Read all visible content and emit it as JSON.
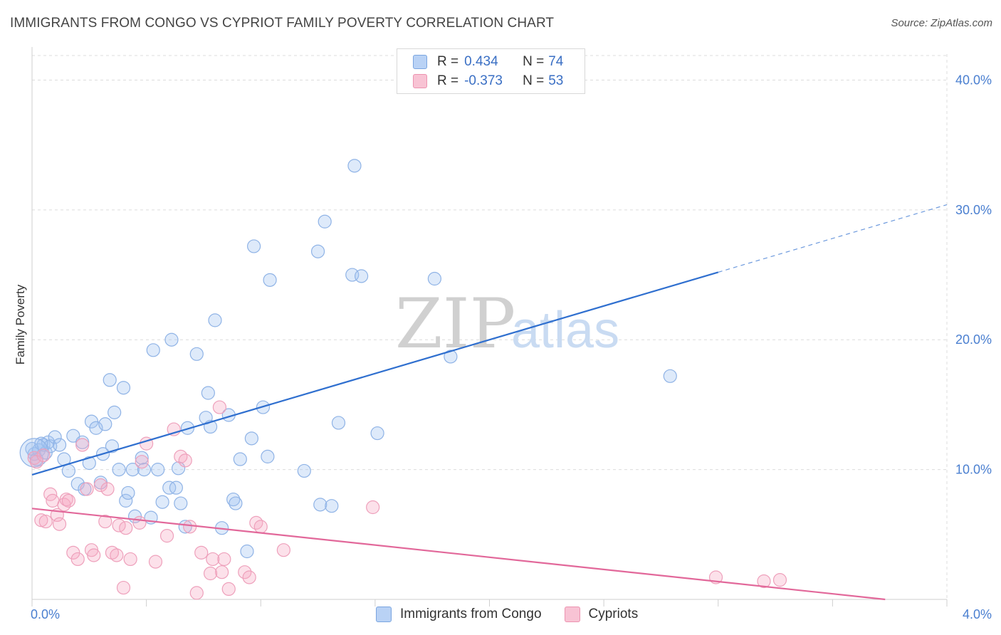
{
  "title": "IMMIGRANTS FROM CONGO VS CYPRIOT FAMILY POVERTY CORRELATION CHART",
  "source": "Source: ZipAtlas.com",
  "watermark": {
    "zip": "ZIP",
    "atlas": "atlas"
  },
  "legend": {
    "r_label": "R =",
    "n_label": "N =",
    "rows": [
      {
        "r": "0.434",
        "n": "74",
        "fill": "#b9d2f5",
        "stroke": "#7aa5e0"
      },
      {
        "r": "-0.373",
        "n": "53",
        "fill": "#f8c3d4",
        "stroke": "#ec93b0"
      }
    ]
  },
  "bottom_legend": {
    "congo": "Immigrants from Congo",
    "cypriots": "Cypriots"
  },
  "colors": {
    "congo_fill": "rgba(160,195,240,0.35)",
    "congo_stroke": "#8fb3e6",
    "congo_line": "#2f6fcf",
    "cyp_fill": "rgba(245,170,195,0.35)",
    "cyp_stroke": "#eea0bb",
    "cyp_line": "#e2689a",
    "grid": "#dcdcdc",
    "axis_text": "#4a7fd0"
  },
  "chart_data": {
    "type": "scatter",
    "title": "IMMIGRANTS FROM CONGO VS CYPRIOT FAMILY POVERTY CORRELATION CHART",
    "xlabel": "",
    "ylabel": "Family Poverty",
    "xlim": [
      0,
      4.0
    ],
    "ylim": [
      0,
      42
    ],
    "x_tick_labels": [
      "0.0%",
      "4.0%"
    ],
    "y_ticks": [
      10,
      20,
      30,
      40
    ],
    "y_tick_labels": [
      "10.0%",
      "20.0%",
      "30.0%",
      "40.0%"
    ],
    "series": [
      {
        "name": "Immigrants from Congo",
        "r": 0.434,
        "n": 74,
        "trend": {
          "x0": 0.0,
          "y0": 9.6,
          "x1": 3.0,
          "y1": 25.2,
          "dash_to_x": 4.0,
          "dash_to_y": 30.4
        },
        "points": [
          [
            0.01,
            11.2
          ],
          [
            0.02,
            10.8
          ],
          [
            0.03,
            11.5
          ],
          [
            0.05,
            11.9
          ],
          [
            0.06,
            11.3
          ],
          [
            0.07,
            12.1
          ],
          [
            0.08,
            11.8
          ],
          [
            0.1,
            12.5
          ],
          [
            0.12,
            11.9
          ],
          [
            0.14,
            10.8
          ],
          [
            0.16,
            9.9
          ],
          [
            0.18,
            12.6
          ],
          [
            0.2,
            8.9
          ],
          [
            0.22,
            12.1
          ],
          [
            0.23,
            8.5
          ],
          [
            0.25,
            10.5
          ],
          [
            0.26,
            13.7
          ],
          [
            0.28,
            13.2
          ],
          [
            0.3,
            9.0
          ],
          [
            0.31,
            11.2
          ],
          [
            0.32,
            13.5
          ],
          [
            0.34,
            16.9
          ],
          [
            0.35,
            11.8
          ],
          [
            0.36,
            14.4
          ],
          [
            0.38,
            10.0
          ],
          [
            0.4,
            16.3
          ],
          [
            0.41,
            7.6
          ],
          [
            0.42,
            8.2
          ],
          [
            0.44,
            10.0
          ],
          [
            0.45,
            6.4
          ],
          [
            0.48,
            10.9
          ],
          [
            0.49,
            10.0
          ],
          [
            0.52,
            6.3
          ],
          [
            0.53,
            19.2
          ],
          [
            0.55,
            10.0
          ],
          [
            0.57,
            7.5
          ],
          [
            0.6,
            8.6
          ],
          [
            0.61,
            20.0
          ],
          [
            0.63,
            8.6
          ],
          [
            0.64,
            10.1
          ],
          [
            0.65,
            7.4
          ],
          [
            0.67,
            5.6
          ],
          [
            0.68,
            13.2
          ],
          [
            0.72,
            18.9
          ],
          [
            0.76,
            14.0
          ],
          [
            0.77,
            15.9
          ],
          [
            0.78,
            13.3
          ],
          [
            0.8,
            21.5
          ],
          [
            0.83,
            5.5
          ],
          [
            0.86,
            14.2
          ],
          [
            0.88,
            7.7
          ],
          [
            0.89,
            7.4
          ],
          [
            0.91,
            10.8
          ],
          [
            0.94,
            3.7
          ],
          [
            0.96,
            12.4
          ],
          [
            0.97,
            27.2
          ],
          [
            1.01,
            14.8
          ],
          [
            1.03,
            11.0
          ],
          [
            1.04,
            24.6
          ],
          [
            1.19,
            9.9
          ],
          [
            1.25,
            26.8
          ],
          [
            1.26,
            7.3
          ],
          [
            1.28,
            29.1
          ],
          [
            1.31,
            7.2
          ],
          [
            1.34,
            13.6
          ],
          [
            1.4,
            25.0
          ],
          [
            1.41,
            33.4
          ],
          [
            1.44,
            24.9
          ],
          [
            1.51,
            12.8
          ],
          [
            1.76,
            24.7
          ],
          [
            1.83,
            18.7
          ],
          [
            2.79,
            17.2
          ],
          [
            0.0,
            11.6
          ],
          [
            0.04,
            12.0
          ]
        ]
      },
      {
        "name": "Cypriots",
        "r": -0.373,
        "n": 53,
        "trend": {
          "x0": 0.0,
          "y0": 7.0,
          "x1": 3.73,
          "y1": 0.0
        },
        "points": [
          [
            0.01,
            10.9
          ],
          [
            0.02,
            10.6
          ],
          [
            0.04,
            6.1
          ],
          [
            0.05,
            11.1
          ],
          [
            0.06,
            6.0
          ],
          [
            0.08,
            8.1
          ],
          [
            0.09,
            7.6
          ],
          [
            0.11,
            6.5
          ],
          [
            0.12,
            5.8
          ],
          [
            0.14,
            7.3
          ],
          [
            0.15,
            7.7
          ],
          [
            0.16,
            7.6
          ],
          [
            0.18,
            3.6
          ],
          [
            0.2,
            3.1
          ],
          [
            0.22,
            11.9
          ],
          [
            0.24,
            8.5
          ],
          [
            0.26,
            3.8
          ],
          [
            0.27,
            3.4
          ],
          [
            0.3,
            8.8
          ],
          [
            0.32,
            6.0
          ],
          [
            0.33,
            8.5
          ],
          [
            0.35,
            3.6
          ],
          [
            0.37,
            3.4
          ],
          [
            0.38,
            5.7
          ],
          [
            0.4,
            0.9
          ],
          [
            0.41,
            5.5
          ],
          [
            0.43,
            3.1
          ],
          [
            0.47,
            5.9
          ],
          [
            0.48,
            10.6
          ],
          [
            0.5,
            12.0
          ],
          [
            0.54,
            2.9
          ],
          [
            0.59,
            4.9
          ],
          [
            0.62,
            13.1
          ],
          [
            0.65,
            11.0
          ],
          [
            0.67,
            10.7
          ],
          [
            0.69,
            5.6
          ],
          [
            0.72,
            0.5
          ],
          [
            0.74,
            3.6
          ],
          [
            0.78,
            2.0
          ],
          [
            0.79,
            3.1
          ],
          [
            0.82,
            14.8
          ],
          [
            0.83,
            2.1
          ],
          [
            0.84,
            3.1
          ],
          [
            0.86,
            0.8
          ],
          [
            0.93,
            2.1
          ],
          [
            0.95,
            1.7
          ],
          [
            0.98,
            5.9
          ],
          [
            1.0,
            5.6
          ],
          [
            1.1,
            3.8
          ],
          [
            1.49,
            7.1
          ],
          [
            2.99,
            1.7
          ],
          [
            3.2,
            1.4
          ],
          [
            3.27,
            1.5
          ]
        ]
      }
    ]
  }
}
